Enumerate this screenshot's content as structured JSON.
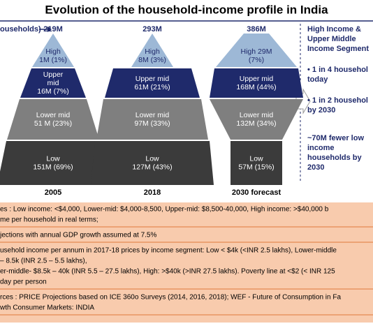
{
  "title": "Evolution of the household-income profile in India",
  "axis_label": "ouseholds)",
  "columns": [
    {
      "year": "2005",
      "total": "219M",
      "segments": [
        {
          "lines": [
            "High",
            "1M (1%)"
          ]
        },
        {
          "lines": [
            "Upper",
            "mid",
            "16M (7%)"
          ]
        },
        {
          "lines": [
            "Lower mid",
            "51 M (23%)"
          ]
        },
        {
          "lines": [
            "Low",
            "151M (69%)"
          ]
        }
      ]
    },
    {
      "year": "2018",
      "total": "293M",
      "segments": [
        {
          "lines": [
            "High",
            "8M (3%)"
          ]
        },
        {
          "lines": [
            "Upper mid",
            "61M (21%)"
          ]
        },
        {
          "lines": [
            "Lower mid",
            "97M (33%)"
          ]
        },
        {
          "lines": [
            "Low",
            "127M (43%)"
          ]
        }
      ]
    },
    {
      "year": "2030 forecast",
      "total": "386M",
      "segments": [
        {
          "lines": [
            "High 29M",
            "(7%)"
          ]
        },
        {
          "lines": [
            "Upper mid",
            "168M (44%)"
          ]
        },
        {
          "lines": [
            "Lower mid",
            "132M (34%)"
          ]
        },
        {
          "lines": [
            "Low",
            "57M (15%)"
          ]
        }
      ]
    }
  ],
  "side_panel": {
    "heading": [
      "High Income &",
      "Upper Middle",
      "Income Segment"
    ],
    "bullets": [
      [
        "• 1 in 4 househol",
        "today"
      ],
      [
        "• 1 in 2 househol",
        "by 2030"
      ]
    ],
    "footer": [
      "~70M fewer low",
      "income",
      "households by",
      "2030"
    ]
  },
  "notes": [
    [
      "es : Low income: <$4,000, Lower-mid: $4,000-8,500, Upper-mid: $8,500-40,000, High income: >$40,000 b",
      "me per household in real terms;"
    ],
    [
      "jections with annual GDP growth assumed at 7.5%"
    ],
    [
      "usehold income per annum in 2017-18 prices by income segment: Low < $4k (<INR 2.5 lakhs), Lower-middle",
      "– 8.5k (INR 2.5 – 5.5 lakhs),",
      "er-middle- $8.5k – 40k (INR 5.5 – 27.5 lakhs), High: >$40k (>INR 27.5 lakhs). Poverty line at <$2 (< INR 125",
      "day per person"
    ],
    [
      "rces : PRICE Projections based on ICE 360o Surveys (2014, 2016, 2018); WEF - Future of Consumption in Fa",
      "wth Consumer Markets: INDIA"
    ]
  ]
}
